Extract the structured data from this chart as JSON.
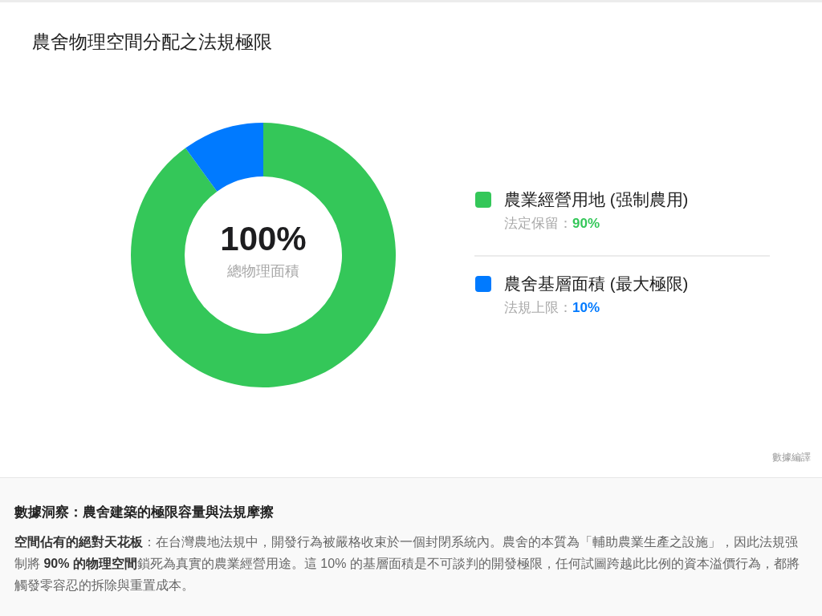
{
  "chart_data": {
    "type": "donut",
    "title": "農舍物理空間分配之法規極限",
    "categories": [
      "農業經營用地 (强制農用)",
      "農舍基層面積 (最大極限)"
    ],
    "values": [
      90,
      10
    ],
    "colors": [
      "#34c759",
      "#007aff"
    ],
    "value_labels": [
      "法定保留：**90%**",
      "法規上限：**10%**"
    ],
    "legend": "right",
    "annotations": [
      "100%",
      "總物理面積",
      "數據編譯",
      "數據洞察：農舍建築的極限容量與法規摩擦",
      "**空間佔有的絕對天花板**：在台灣農地法規中，開發行為被嚴格收束於一個封閉系統內。農舍的本質為「輔助農業生產之設施」，因此法規强制將 **90% 的物理空間**鎖死為真實的農業經營用途。這 10% 的基層面積是不可談判的開發極限，任何試圖跨越此比例的資本溢價行為，都將觸發零容忍的拆除與重置成本。"
    ]
  }
}
